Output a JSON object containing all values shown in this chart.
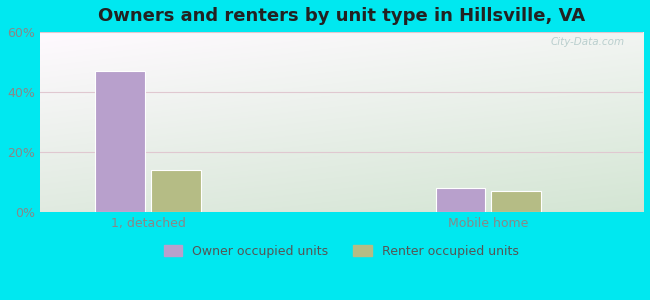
{
  "title": "Owners and renters by unit type in Hillsville, VA",
  "categories": [
    "1, detached",
    "Mobile home"
  ],
  "owner_values": [
    47,
    8
  ],
  "renter_values": [
    14,
    7
  ],
  "owner_color": "#b8a0cc",
  "renter_color": "#b5bc85",
  "ylim": [
    0,
    60
  ],
  "yticks": [
    0,
    20,
    40,
    60
  ],
  "ytick_labels": [
    "0%",
    "20%",
    "40%",
    "60%"
  ],
  "background_outer": "#00e8f0",
  "legend_owner": "Owner occupied units",
  "legend_renter": "Renter occupied units",
  "bar_width": 0.32,
  "group_positions": [
    1.0,
    3.2
  ],
  "xlim": [
    0.3,
    4.2
  ],
  "watermark": "City-Data.com",
  "grid_color": "#e0c8d0",
  "tick_color": "#888888"
}
